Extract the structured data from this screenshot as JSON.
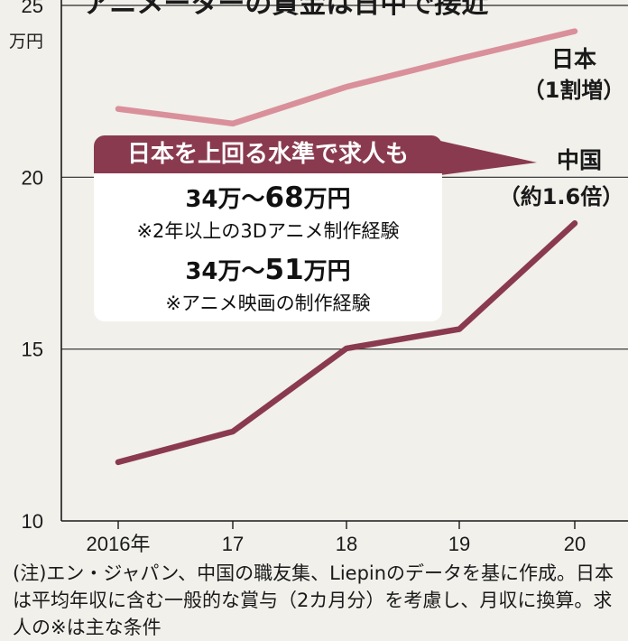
{
  "chart_data": {
    "type": "line",
    "title": "アニメーターの賃金は日中で接近",
    "ylabel": "万円",
    "categories": [
      "2016年",
      "17",
      "18",
      "19",
      "20"
    ],
    "x": [
      2016,
      2017,
      2018,
      2019,
      2020
    ],
    "ylim": [
      10,
      25
    ],
    "yticks": [
      10,
      15,
      20,
      25
    ],
    "grid": true,
    "series": [
      {
        "name": "日本",
        "note": "（1割増）",
        "color": "#d9909a",
        "values": [
          21.99,
          21.56,
          22.63,
          23.45,
          24.25
        ]
      },
      {
        "name": "中国",
        "note": "（約1.6倍）",
        "color": "#8a3a4f",
        "values": [
          11.71,
          12.6,
          15.02,
          15.58,
          18.66
        ]
      }
    ]
  },
  "callout": {
    "heading": "日本を上回る水準で求人も",
    "jobs": [
      {
        "min": "34万",
        "sep": "～",
        "max": "68",
        "unit": "万円",
        "condition": "※2年以上の3Dアニメ制作経験"
      },
      {
        "min": "34万",
        "sep": "～",
        "max": "51",
        "unit": "万円",
        "condition": "※アニメ映画の制作経験"
      }
    ]
  },
  "note": "(注)エン・ジャパン、中国の職友集、Liepinのデータを基に作成。日本は平均年収に含む一般的な賞与（2カ月分）を考慮し、月収に換算。求人の※は主な条件",
  "colors": {
    "background": "#f1f0eb",
    "axis": "#1a1a1a",
    "grid": "#2a2a2a",
    "callout_head": "#8a3a4f",
    "callout_body": "#ffffff"
  }
}
